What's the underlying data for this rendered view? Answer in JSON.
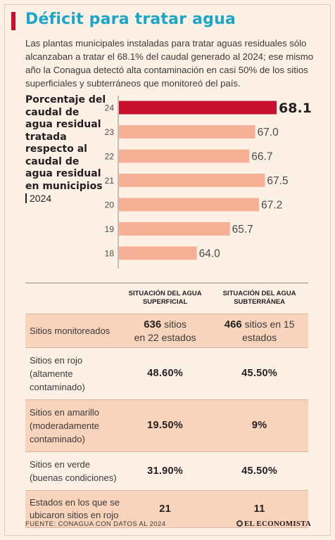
{
  "header": {
    "title": "Déficit para tratar agua",
    "intro": "Las plantas municipales instaladas para tratar aguas residuales sólo alcanzaban a tratar el 68.1% del caudal generado al 2024; ese mismo año la Conagua detectó alta contaminación en casi 50% de los sitios superficiales y subterráneos que monitoreó del país."
  },
  "colors": {
    "accent": "#c8102e",
    "bar": "#f6b096",
    "title": "#1aa6c7",
    "shade": "#f9d4bc"
  },
  "chart_data": {
    "type": "bar",
    "orientation": "horizontal",
    "title": "Porcentaje del caudal de agua residual tratada respecto al caudal de agua residual en municipios",
    "subtitle": "2024",
    "categories": [
      "24",
      "23",
      "22",
      "21",
      "20",
      "19",
      "18"
    ],
    "values": [
      68.1,
      67.0,
      66.7,
      67.5,
      67.2,
      65.7,
      64.0
    ],
    "value_labels": [
      "68.1",
      "67.0",
      "66.7",
      "67.5",
      "67.2",
      "65.7",
      "64.0"
    ],
    "highlight_index": 0,
    "axis_min": 60,
    "axis_max": 68.1
  },
  "table": {
    "headers": [
      "SITUACIÓN DEL AGUA SUPERFICIAL",
      "SITUACIÓN DEL AGUA SUBTERRÁNEA"
    ],
    "monitored": {
      "label": "Sitios monitoreados",
      "surface_count": "636",
      "surface_text": "sitios",
      "surface_text2": "en 22 estados",
      "ground_count": "466",
      "ground_text": "sitios en 15",
      "ground_text2": "estados"
    },
    "rows": [
      {
        "label1": "Sitios en rojo",
        "label2": "(altamente",
        "label3": "contaminado)",
        "surface": "48.60%",
        "ground": "45.50%"
      },
      {
        "label1": "Sitios en amarillo",
        "label2": "(moderadamente",
        "label3": "contaminado)",
        "surface": "19.50%",
        "ground": "9%"
      },
      {
        "label1": "Sitios en verde",
        "label2": "(buenas condiciones)",
        "label3": "",
        "surface": "31.90%",
        "ground": "45.50%"
      }
    ],
    "states": {
      "label1": "Estados en los que se",
      "label2": "ubicaron sitios en rojo",
      "surface": "21",
      "ground": "11"
    }
  },
  "footer": {
    "source": "FUENTE: CONAGUA CON DATOS AL 2024",
    "brand": "EL ECONOMISTA"
  }
}
